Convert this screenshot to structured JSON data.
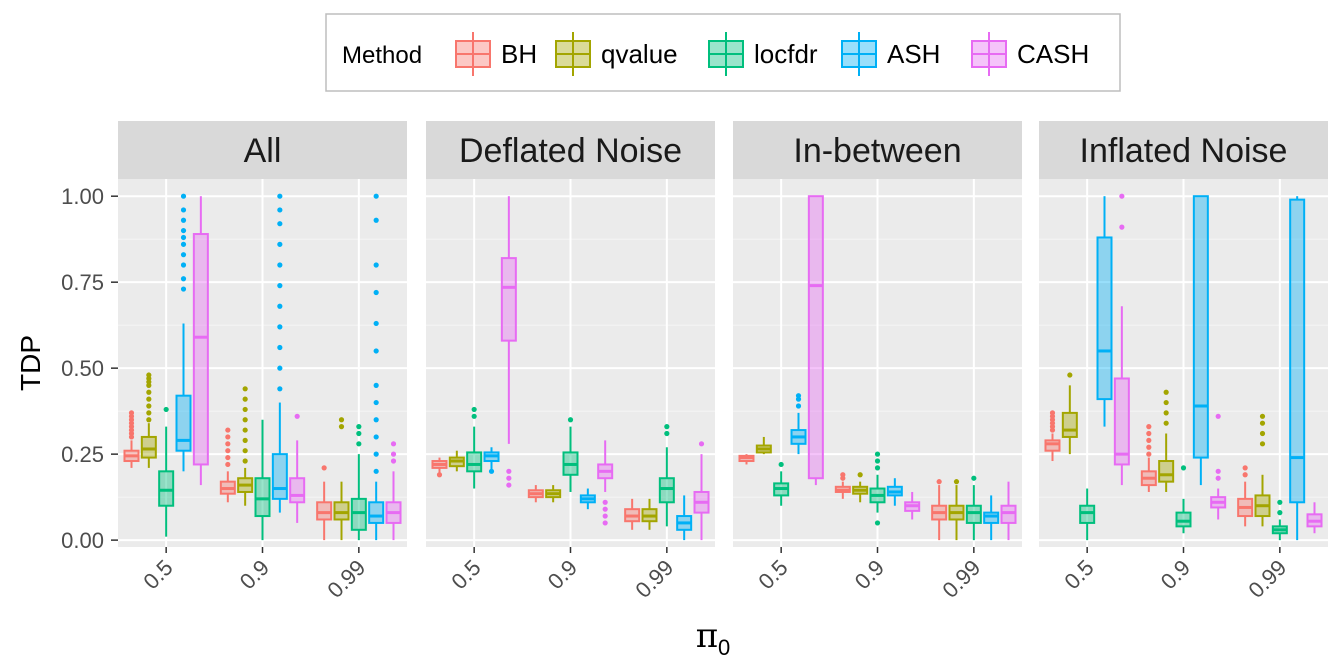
{
  "chart_data": {
    "type": "box",
    "ylabel": "TDP",
    "xlabel": "π",
    "xlabel_sub": "0",
    "ylim": [
      -0.02,
      1.05
    ],
    "yticks": [
      "0.00",
      "0.25",
      "0.50",
      "0.75",
      "1.00"
    ],
    "ytick_values": [
      0,
      0.25,
      0.5,
      0.75,
      1.0
    ],
    "categories": [
      "0.5",
      "0.9",
      "0.99"
    ],
    "legend": {
      "title": "Method",
      "position": "top",
      "entries": [
        {
          "name": "BH",
          "color": "#F8766D"
        },
        {
          "name": "qvalue",
          "color": "#A3A500"
        },
        {
          "name": "locfdr",
          "color": "#00BF7D"
        },
        {
          "name": "ASH",
          "color": "#00B0F6"
        },
        {
          "name": "CASH",
          "color": "#E76BF3"
        }
      ]
    },
    "panels": [
      {
        "title": "All",
        "boxes": {
          "0.5": [
            {
              "min": 0.21,
              "q1": 0.23,
              "med": 0.245,
              "q3": 0.26,
              "max": 0.29,
              "out": [
                0.3,
                0.31,
                0.32,
                0.33,
                0.34,
                0.35,
                0.36,
                0.37
              ]
            },
            {
              "min": 0.21,
              "q1": 0.24,
              "med": 0.265,
              "q3": 0.3,
              "max": 0.34,
              "out": [
                0.35,
                0.37,
                0.39,
                0.41,
                0.43,
                0.45,
                0.46,
                0.47,
                0.48
              ]
            },
            {
              "min": 0.01,
              "q1": 0.1,
              "med": 0.145,
              "q3": 0.2,
              "max": 0.33,
              "out": [
                0.38
              ]
            },
            {
              "min": 0.2,
              "q1": 0.26,
              "med": 0.29,
              "q3": 0.42,
              "max": 0.63,
              "out": [
                0.73,
                0.76,
                0.8,
                0.83,
                0.86,
                0.88,
                0.9,
                0.93,
                0.96,
                1.0
              ]
            },
            {
              "min": 0.16,
              "q1": 0.22,
              "med": 0.59,
              "q3": 0.89,
              "max": 1.0,
              "out": []
            }
          ],
          "0.9": [
            {
              "min": 0.11,
              "q1": 0.135,
              "med": 0.15,
              "q3": 0.17,
              "max": 0.2,
              "out": [
                0.22,
                0.24,
                0.26,
                0.28,
                0.3,
                0.32
              ]
            },
            {
              "min": 0.1,
              "q1": 0.14,
              "med": 0.16,
              "q3": 0.18,
              "max": 0.21,
              "out": [
                0.23,
                0.26,
                0.29,
                0.32,
                0.35,
                0.38,
                0.41,
                0.44
              ]
            },
            {
              "min": 0.0,
              "q1": 0.07,
              "med": 0.12,
              "q3": 0.18,
              "max": 0.35,
              "out": []
            },
            {
              "min": 0.08,
              "q1": 0.12,
              "med": 0.15,
              "q3": 0.25,
              "max": 0.4,
              "out": [
                0.44,
                0.5,
                0.56,
                0.62,
                0.68,
                0.74,
                0.8,
                0.86,
                0.92,
                0.96,
                1.0
              ]
            },
            {
              "min": 0.05,
              "q1": 0.11,
              "med": 0.13,
              "q3": 0.18,
              "max": 0.29,
              "out": [
                0.36
              ]
            }
          ],
          "0.99": [
            {
              "min": 0.0,
              "q1": 0.06,
              "med": 0.08,
              "q3": 0.11,
              "max": 0.17,
              "out": [
                0.21
              ]
            },
            {
              "min": 0.0,
              "q1": 0.06,
              "med": 0.08,
              "q3": 0.11,
              "max": 0.17,
              "out": [
                0.33,
                0.35
              ]
            },
            {
              "min": 0.0,
              "q1": 0.03,
              "med": 0.08,
              "q3": 0.12,
              "max": 0.25,
              "out": [
                0.28,
                0.31,
                0.33
              ]
            },
            {
              "min": 0.0,
              "q1": 0.05,
              "med": 0.07,
              "q3": 0.11,
              "max": 0.17,
              "out": [
                0.2,
                0.25,
                0.3,
                0.35,
                0.4,
                0.45,
                0.55,
                0.63,
                0.72,
                0.8,
                0.93,
                1.0
              ]
            },
            {
              "min": 0.0,
              "q1": 0.05,
              "med": 0.08,
              "q3": 0.11,
              "max": 0.2,
              "out": [
                0.23,
                0.25,
                0.28
              ]
            }
          ]
        }
      },
      {
        "title": "Deflated Noise",
        "boxes": {
          "0.5": [
            {
              "min": 0.19,
              "q1": 0.21,
              "med": 0.22,
              "q3": 0.23,
              "max": 0.24,
              "out": [
                0.19
              ]
            },
            {
              "min": 0.2,
              "q1": 0.215,
              "med": 0.23,
              "q3": 0.24,
              "max": 0.26,
              "out": []
            },
            {
              "min": 0.15,
              "q1": 0.2,
              "med": 0.22,
              "q3": 0.255,
              "max": 0.33,
              "out": [
                0.36,
                0.38
              ]
            },
            {
              "min": 0.2,
              "q1": 0.23,
              "med": 0.245,
              "q3": 0.255,
              "max": 0.27,
              "out": [
                0.2
              ]
            },
            {
              "min": 0.28,
              "q1": 0.58,
              "med": 0.735,
              "q3": 0.82,
              "max": 1.0,
              "out": [
                0.16,
                0.18,
                0.2
              ]
            }
          ],
          "0.9": [
            {
              "min": 0.11,
              "q1": 0.125,
              "med": 0.135,
              "q3": 0.145,
              "max": 0.16,
              "out": []
            },
            {
              "min": 0.11,
              "q1": 0.125,
              "med": 0.135,
              "q3": 0.145,
              "max": 0.16,
              "out": []
            },
            {
              "min": 0.14,
              "q1": 0.19,
              "med": 0.22,
              "q3": 0.255,
              "max": 0.33,
              "out": [
                0.35
              ]
            },
            {
              "min": 0.09,
              "q1": 0.11,
              "med": 0.12,
              "q3": 0.13,
              "max": 0.15,
              "out": []
            },
            {
              "min": 0.14,
              "q1": 0.18,
              "med": 0.2,
              "q3": 0.22,
              "max": 0.29,
              "out": [
                0.05,
                0.07,
                0.09,
                0.11
              ]
            }
          ],
          "0.99": [
            {
              "min": 0.03,
              "q1": 0.055,
              "med": 0.07,
              "q3": 0.09,
              "max": 0.12,
              "out": []
            },
            {
              "min": 0.03,
              "q1": 0.055,
              "med": 0.07,
              "q3": 0.09,
              "max": 0.12,
              "out": []
            },
            {
              "min": 0.04,
              "q1": 0.11,
              "med": 0.15,
              "q3": 0.18,
              "max": 0.27,
              "out": [
                0.31,
                0.33
              ]
            },
            {
              "min": 0.0,
              "q1": 0.03,
              "med": 0.05,
              "q3": 0.07,
              "max": 0.13,
              "out": []
            },
            {
              "min": 0.0,
              "q1": 0.08,
              "med": 0.11,
              "q3": 0.14,
              "max": 0.25,
              "out": [
                0.28
              ]
            }
          ]
        }
      },
      {
        "title": "In-between",
        "boxes": {
          "0.5": [
            {
              "min": 0.22,
              "q1": 0.23,
              "med": 0.24,
              "q3": 0.245,
              "max": 0.25,
              "out": []
            },
            {
              "min": 0.25,
              "q1": 0.255,
              "med": 0.265,
              "q3": 0.275,
              "max": 0.3,
              "out": []
            },
            {
              "min": 0.1,
              "q1": 0.13,
              "med": 0.15,
              "q3": 0.165,
              "max": 0.2,
              "out": [
                0.22
              ]
            },
            {
              "min": 0.25,
              "q1": 0.28,
              "med": 0.3,
              "q3": 0.32,
              "max": 0.37,
              "out": [
                0.39,
                0.41,
                0.42
              ]
            },
            {
              "min": 0.16,
              "q1": 0.18,
              "med": 0.74,
              "q3": 1.0,
              "max": 1.0,
              "out": []
            }
          ],
          "0.9": [
            {
              "min": 0.12,
              "q1": 0.14,
              "med": 0.145,
              "q3": 0.155,
              "max": 0.17,
              "out": [
                0.18,
                0.19
              ]
            },
            {
              "min": 0.11,
              "q1": 0.135,
              "med": 0.145,
              "q3": 0.155,
              "max": 0.17,
              "out": [
                0.19
              ]
            },
            {
              "min": 0.08,
              "q1": 0.11,
              "med": 0.13,
              "q3": 0.15,
              "max": 0.19,
              "out": [
                0.05,
                0.21,
                0.23,
                0.25
              ]
            },
            {
              "min": 0.1,
              "q1": 0.13,
              "med": 0.14,
              "q3": 0.155,
              "max": 0.18,
              "out": []
            },
            {
              "min": 0.06,
              "q1": 0.085,
              "med": 0.1,
              "q3": 0.11,
              "max": 0.14,
              "out": []
            }
          ],
          "0.99": [
            {
              "min": 0.0,
              "q1": 0.06,
              "med": 0.08,
              "q3": 0.1,
              "max": 0.16,
              "out": [
                0.17
              ]
            },
            {
              "min": 0.0,
              "q1": 0.06,
              "med": 0.08,
              "q3": 0.1,
              "max": 0.16,
              "out": [
                0.17
              ]
            },
            {
              "min": 0.0,
              "q1": 0.05,
              "med": 0.08,
              "q3": 0.1,
              "max": 0.16,
              "out": [
                0.18
              ]
            },
            {
              "min": 0.0,
              "q1": 0.05,
              "med": 0.07,
              "q3": 0.08,
              "max": 0.13,
              "out": []
            },
            {
              "min": 0.0,
              "q1": 0.05,
              "med": 0.08,
              "q3": 0.1,
              "max": 0.17,
              "out": []
            }
          ]
        }
      },
      {
        "title": "Inflated Noise",
        "boxes": {
          "0.5": [
            {
              "min": 0.23,
              "q1": 0.26,
              "med": 0.28,
              "q3": 0.29,
              "max": 0.31,
              "out": [
                0.32,
                0.33,
                0.34,
                0.35,
                0.36,
                0.37
              ]
            },
            {
              "min": 0.25,
              "q1": 0.3,
              "med": 0.32,
              "q3": 0.37,
              "max": 0.45,
              "out": [
                0.48
              ]
            },
            {
              "min": 0.0,
              "q1": 0.05,
              "med": 0.08,
              "q3": 0.1,
              "max": 0.15,
              "out": []
            },
            {
              "min": 0.33,
              "q1": 0.41,
              "med": 0.55,
              "q3": 0.88,
              "max": 1.0,
              "out": []
            },
            {
              "min": 0.16,
              "q1": 0.22,
              "med": 0.25,
              "q3": 0.47,
              "max": 0.68,
              "out": [
                0.91,
                1.0
              ]
            }
          ],
          "0.9": [
            {
              "min": 0.14,
              "q1": 0.16,
              "med": 0.18,
              "q3": 0.2,
              "max": 0.24,
              "out": [
                0.25,
                0.27,
                0.29,
                0.31,
                0.33
              ]
            },
            {
              "min": 0.14,
              "q1": 0.17,
              "med": 0.19,
              "q3": 0.23,
              "max": 0.31,
              "out": [
                0.34,
                0.37,
                0.4,
                0.43
              ]
            },
            {
              "min": 0.02,
              "q1": 0.04,
              "med": 0.055,
              "q3": 0.08,
              "max": 0.12,
              "out": [
                0.21
              ]
            },
            {
              "min": 0.16,
              "q1": 0.24,
              "med": 0.39,
              "q3": 1.0,
              "max": 1.0,
              "out": []
            },
            {
              "min": 0.06,
              "q1": 0.095,
              "med": 0.11,
              "q3": 0.125,
              "max": 0.15,
              "out": [
                0.18,
                0.2,
                0.36
              ]
            }
          ],
          "0.99": [
            {
              "min": 0.04,
              "q1": 0.07,
              "med": 0.095,
              "q3": 0.12,
              "max": 0.17,
              "out": [
                0.19,
                0.21
              ]
            },
            {
              "min": 0.04,
              "q1": 0.07,
              "med": 0.1,
              "q3": 0.13,
              "max": 0.19,
              "out": [
                0.28,
                0.31,
                0.34,
                0.36
              ]
            },
            {
              "min": 0.0,
              "q1": 0.02,
              "med": 0.03,
              "q3": 0.04,
              "max": 0.06,
              "out": [
                0.08,
                0.11
              ]
            },
            {
              "min": 0.0,
              "q1": 0.11,
              "med": 0.24,
              "q3": 0.99,
              "max": 1.0,
              "out": []
            },
            {
              "min": 0.02,
              "q1": 0.04,
              "med": 0.055,
              "q3": 0.075,
              "max": 0.11,
              "out": []
            }
          ]
        }
      }
    ]
  }
}
